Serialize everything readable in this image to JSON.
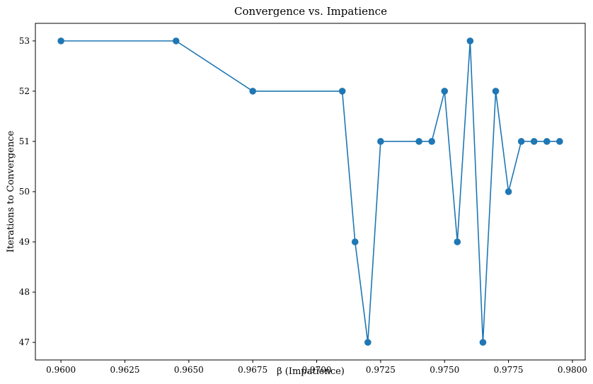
{
  "chart_data": {
    "type": "line",
    "title": "Convergence vs. Impatience",
    "xlabel": "β (Impatience)",
    "ylabel": "Iterations to Convergence",
    "xlim": [
      0.959,
      0.9805
    ],
    "ylim": [
      46.65,
      53.35
    ],
    "xticks": [
      {
        "value": 0.96,
        "label": "0.9600"
      },
      {
        "value": 0.9625,
        "label": "0.9625"
      },
      {
        "value": 0.965,
        "label": "0.9650"
      },
      {
        "value": 0.9675,
        "label": "0.9675"
      },
      {
        "value": 0.97,
        "label": "0.9700"
      },
      {
        "value": 0.9725,
        "label": "0.9725"
      },
      {
        "value": 0.975,
        "label": "0.9750"
      },
      {
        "value": 0.9775,
        "label": "0.9775"
      },
      {
        "value": 0.98,
        "label": "0.9800"
      }
    ],
    "yticks": [
      {
        "value": 47,
        "label": "47"
      },
      {
        "value": 48,
        "label": "48"
      },
      {
        "value": 49,
        "label": "49"
      },
      {
        "value": 50,
        "label": "50"
      },
      {
        "value": 51,
        "label": "51"
      },
      {
        "value": 52,
        "label": "52"
      },
      {
        "value": 53,
        "label": "53"
      }
    ],
    "grid": false,
    "color": "#1f77b4",
    "series": [
      {
        "x": [
          0.96,
          0.9645,
          0.9675,
          0.971,
          0.9715,
          0.972,
          0.9725,
          0.974,
          0.9745,
          0.975,
          0.9755,
          0.976,
          0.9765,
          0.977,
          0.9775,
          0.978,
          0.9785,
          0.979,
          0.9795
        ],
        "y": [
          53,
          53,
          52,
          52,
          49,
          47,
          51,
          51,
          51,
          52,
          49,
          53,
          47,
          52,
          50,
          51,
          51,
          51,
          51
        ]
      }
    ]
  }
}
